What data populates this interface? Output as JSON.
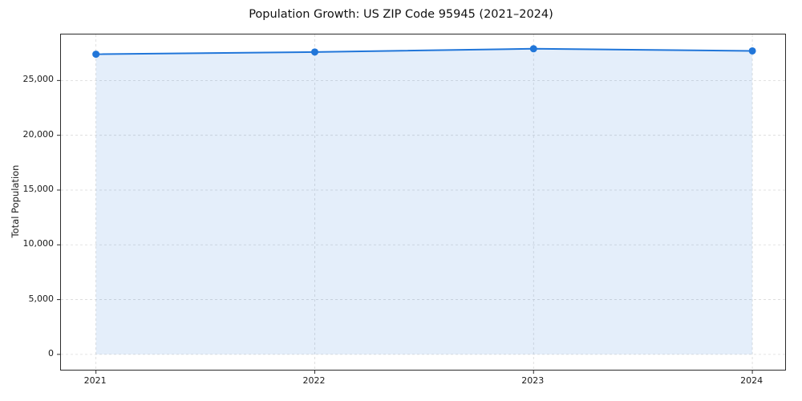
{
  "chart_data": {
    "type": "area",
    "title": "Population Growth: US ZIP Code 95945 (2021–2024)",
    "xlabel": "",
    "ylabel": "Total Population",
    "series_name": "Total Population",
    "x": [
      2021,
      2022,
      2023,
      2024
    ],
    "values": [
      27400,
      27600,
      27900,
      27700
    ],
    "xlim": [
      2020.84,
      2024.15
    ],
    "ylim": [
      -1400,
      29200
    ],
    "xticks": [
      2021,
      2022,
      2023,
      2024
    ],
    "xtick_labels": [
      "2021",
      "2022",
      "2023",
      "2024"
    ],
    "yticks": [
      0,
      5000,
      10000,
      15000,
      20000,
      25000
    ],
    "ytick_labels": [
      "0",
      "5,000",
      "10,000",
      "15,000",
      "20,000",
      "25,000"
    ],
    "baseline": 0,
    "grid": true,
    "grid_style": "dashed",
    "legend": false,
    "markers": true,
    "marker_radius": 4.5,
    "line_width": 2,
    "line_color": "#2176d9",
    "fill_color": "#2176d9",
    "fill_opacity": 0.12,
    "grid_color": "#d9d9d9",
    "spine_color": "#2b2b2b",
    "background_color": "#ffffff"
  }
}
